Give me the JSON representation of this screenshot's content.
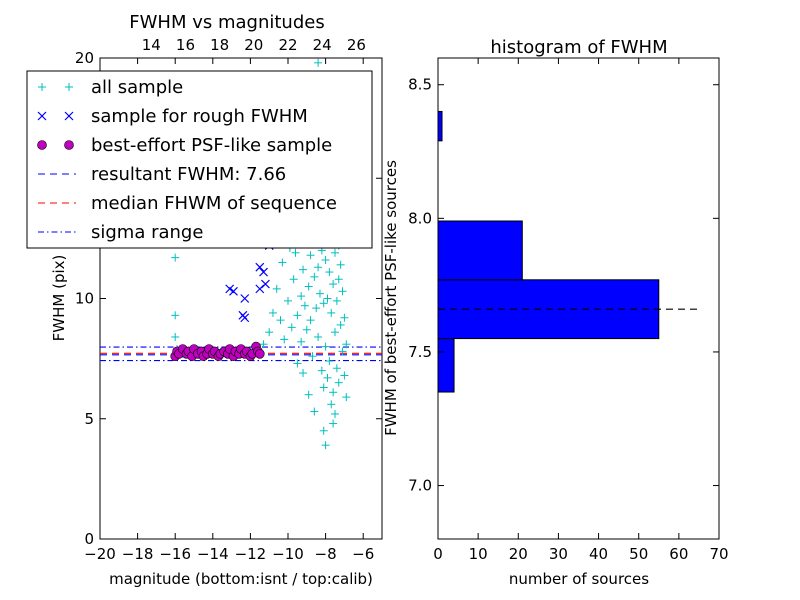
{
  "chart_data": [
    {
      "type": "scatter",
      "title": "FWHM vs magnitudes",
      "xlabel": "magnitude (bottom:isnt / top:calib)",
      "ylabel": "FWHM (pix)",
      "xlim": [
        -20,
        -5
      ],
      "ylim": [
        0,
        20
      ],
      "xticks": [
        -20,
        -18,
        -16,
        -14,
        -12,
        -10,
        -8,
        -6
      ],
      "xtick_labels": [
        "−20",
        "−18",
        "−16",
        "−14",
        "−12",
        "−10",
        "−8",
        "−6"
      ],
      "yticks": [
        0,
        5,
        10,
        15,
        20
      ],
      "ytick_labels": [
        "0",
        "5",
        "10",
        "15",
        "20"
      ],
      "top_xlim": [
        11,
        27.5
      ],
      "top_xticks": [
        14,
        16,
        18,
        20,
        22,
        24,
        26
      ],
      "top_xtick_labels": [
        "14",
        "16",
        "18",
        "20",
        "22",
        "24",
        "26"
      ],
      "legend_position": "upper-left",
      "legend": [
        {
          "label": "all sample",
          "marker": "plus",
          "color": "#00bfbf"
        },
        {
          "label": "sample for rough FWHM",
          "marker": "x",
          "color": "#0000ff"
        },
        {
          "label": "best-effort PSF-like sample",
          "marker": "circle",
          "color": "#bf00bf"
        },
        {
          "label": "resultant FWHM: 7.66",
          "marker": "dashed-line",
          "color": "#0000ff"
        },
        {
          "label": "median FHWM of sequence",
          "marker": "dashed-line",
          "color": "#ff0000"
        },
        {
          "label": "sigma range",
          "marker": "dashdot-line",
          "color": "#0000ff"
        }
      ],
      "hlines": [
        {
          "y": 7.66,
          "style": "dashed",
          "color": "#0000ff"
        },
        {
          "y": 7.72,
          "style": "dashed",
          "color": "#ff0000"
        },
        {
          "y": 7.98,
          "style": "dashdot",
          "color": "#0000ff"
        },
        {
          "y": 7.42,
          "style": "dashdot",
          "color": "#0000ff"
        }
      ],
      "series": [
        {
          "name": "all sample",
          "points": [
            [
              -16.0,
              11.7
            ],
            [
              -16.0,
              9.3
            ],
            [
              -16.0,
              8.4
            ],
            [
              -15.9,
              7.9
            ],
            [
              -15.6,
              7.7
            ],
            [
              -15.2,
              7.8
            ],
            [
              -14.7,
              7.7
            ],
            [
              -14.3,
              7.8
            ],
            [
              -13.9,
              7.7
            ],
            [
              -13.5,
              7.8
            ],
            [
              -13.2,
              7.7
            ],
            [
              -12.8,
              7.8
            ],
            [
              -12.4,
              7.7
            ],
            [
              -12.0,
              7.8
            ],
            [
              -11.7,
              7.9
            ],
            [
              -11.5,
              7.7
            ],
            [
              -11.3,
              8.1
            ],
            [
              -11.0,
              8.6
            ],
            [
              -10.8,
              9.4
            ],
            [
              -10.6,
              10.4
            ],
            [
              -10.4,
              9.1
            ],
            [
              -10.3,
              11.5
            ],
            [
              -10.2,
              8.3
            ],
            [
              -10.0,
              9.9
            ],
            [
              -9.9,
              12.1
            ],
            [
              -9.8,
              8.8
            ],
            [
              -9.7,
              10.8
            ],
            [
              -9.6,
              11.9
            ],
            [
              -9.5,
              9.3
            ],
            [
              -9.5,
              7.3
            ],
            [
              -9.4,
              12.7
            ],
            [
              -9.3,
              10.1
            ],
            [
              -9.3,
              8.2
            ],
            [
              -9.2,
              11.2
            ],
            [
              -9.1,
              13.1
            ],
            [
              -9.1,
              9.7
            ],
            [
              -9.0,
              12.4
            ],
            [
              -9.0,
              8.7
            ],
            [
              -8.9,
              10.5
            ],
            [
              -8.9,
              14.0
            ],
            [
              -8.8,
              11.8
            ],
            [
              -8.8,
              9.1
            ],
            [
              -8.7,
              13.6
            ],
            [
              -8.7,
              7.6
            ],
            [
              -8.6,
              10.9
            ],
            [
              -8.6,
              12.9
            ],
            [
              -8.5,
              9.6
            ],
            [
              -8.5,
              14.5
            ],
            [
              -8.4,
              11.3
            ],
            [
              -8.4,
              8.4
            ],
            [
              -8.3,
              13.2
            ],
            [
              -8.3,
              10.2
            ],
            [
              -8.3,
              19.3
            ],
            [
              -8.2,
              15.1
            ],
            [
              -8.2,
              12.0
            ],
            [
              -8.2,
              7.0
            ],
            [
              -8.1,
              9.8
            ],
            [
              -8.1,
              14.2
            ],
            [
              -8.1,
              6.3
            ],
            [
              -8.0,
              11.6
            ],
            [
              -8.0,
              8.0
            ],
            [
              -8.0,
              16.4
            ],
            [
              -7.9,
              12.8
            ],
            [
              -7.9,
              10.0
            ],
            [
              -7.9,
              6.7
            ],
            [
              -7.8,
              13.8
            ],
            [
              -7.8,
              11.1
            ],
            [
              -7.8,
              7.4
            ],
            [
              -7.7,
              9.4
            ],
            [
              -7.7,
              12.5
            ],
            [
              -7.7,
              5.6
            ],
            [
              -7.6,
              10.6
            ],
            [
              -7.6,
              14.8
            ],
            [
              -7.6,
              6.1
            ],
            [
              -7.5,
              11.9
            ],
            [
              -7.5,
              8.6
            ],
            [
              -7.5,
              5.2
            ],
            [
              -7.4,
              13.3
            ],
            [
              -7.4,
              9.9
            ],
            [
              -7.4,
              7.1
            ],
            [
              -7.3,
              10.8
            ],
            [
              -7.3,
              12.2
            ],
            [
              -7.3,
              6.5
            ],
            [
              -7.2,
              8.9
            ],
            [
              -7.2,
              11.4
            ],
            [
              -7.1,
              7.8
            ],
            [
              -7.1,
              10.3
            ],
            [
              -7.0,
              6.8
            ],
            [
              -7.0,
              9.2
            ],
            [
              -6.9,
              8.1
            ],
            [
              -6.9,
              5.9
            ],
            [
              -7.6,
              4.8
            ],
            [
              -8.1,
              4.5
            ],
            [
              -8.0,
              3.9
            ],
            [
              -8.6,
              5.3
            ],
            [
              -8.9,
              6.0
            ],
            [
              -9.2,
              6.9
            ],
            [
              -8.4,
              19.8
            ],
            [
              -8.6,
              17.2
            ],
            [
              -8.2,
              18.1
            ],
            [
              -7.9,
              16.9
            ]
          ]
        },
        {
          "name": "sample for rough FWHM",
          "points": [
            [
              -13.1,
              10.4
            ],
            [
              -12.9,
              10.3
            ],
            [
              -12.4,
              9.3
            ],
            [
              -12.3,
              9.2
            ],
            [
              -12.3,
              10.0
            ],
            [
              -11.6,
              12.9
            ],
            [
              -11.5,
              11.3
            ],
            [
              -11.3,
              11.1
            ],
            [
              -11.5,
              10.4
            ],
            [
              -11.2,
              10.6
            ],
            [
              -11.0,
              12.2
            ]
          ]
        },
        {
          "name": "best-effort PSF-like sample",
          "points": [
            [
              -16.0,
              7.6
            ],
            [
              -15.9,
              7.8
            ],
            [
              -15.8,
              7.7
            ],
            [
              -15.6,
              7.9
            ],
            [
              -15.4,
              7.7
            ],
            [
              -15.3,
              7.8
            ],
            [
              -15.1,
              7.6
            ],
            [
              -15.0,
              7.9
            ],
            [
              -14.8,
              7.7
            ],
            [
              -14.6,
              7.8
            ],
            [
              -14.5,
              7.6
            ],
            [
              -14.3,
              7.7
            ],
            [
              -14.2,
              7.9
            ],
            [
              -14.0,
              7.7
            ],
            [
              -13.9,
              7.8
            ],
            [
              -13.7,
              7.6
            ],
            [
              -13.6,
              7.7
            ],
            [
              -13.4,
              7.8
            ],
            [
              -13.2,
              7.7
            ],
            [
              -13.1,
              7.9
            ],
            [
              -12.9,
              7.6
            ],
            [
              -12.8,
              7.8
            ],
            [
              -12.6,
              7.7
            ],
            [
              -12.5,
              7.9
            ],
            [
              -12.3,
              7.7
            ],
            [
              -12.2,
              7.8
            ],
            [
              -12.0,
              7.6
            ],
            [
              -11.9,
              7.7
            ],
            [
              -11.7,
              8.0
            ],
            [
              -11.6,
              7.8
            ],
            [
              -11.5,
              7.7
            ]
          ]
        }
      ]
    },
    {
      "type": "bar",
      "orientation": "horizontal",
      "title": "histogram of FWHM",
      "xlabel": "number of sources",
      "ylabel": "FWHM of best-effort PSF-like sources",
      "xlim": [
        0,
        70
      ],
      "ylim": [
        6.8,
        8.6
      ],
      "xticks": [
        0,
        10,
        20,
        30,
        40,
        50,
        60,
        70
      ],
      "xtick_labels": [
        "0",
        "10",
        "20",
        "30",
        "40",
        "50",
        "60",
        "70"
      ],
      "yticks": [
        7.0,
        7.5,
        8.0,
        8.5
      ],
      "ytick_labels": [
        "7.0",
        "7.5",
        "8.0",
        "8.5"
      ],
      "color": "#0000ff",
      "bins": [
        {
          "from": 7.35,
          "to": 7.55,
          "count": 4
        },
        {
          "from": 7.55,
          "to": 7.77,
          "count": 55
        },
        {
          "from": 7.77,
          "to": 7.99,
          "count": 21
        },
        {
          "from": 8.29,
          "to": 8.4,
          "count": 1
        }
      ],
      "hline": {
        "y": 7.66,
        "x_end": 65,
        "style": "dashed",
        "color": "#000000"
      }
    }
  ]
}
